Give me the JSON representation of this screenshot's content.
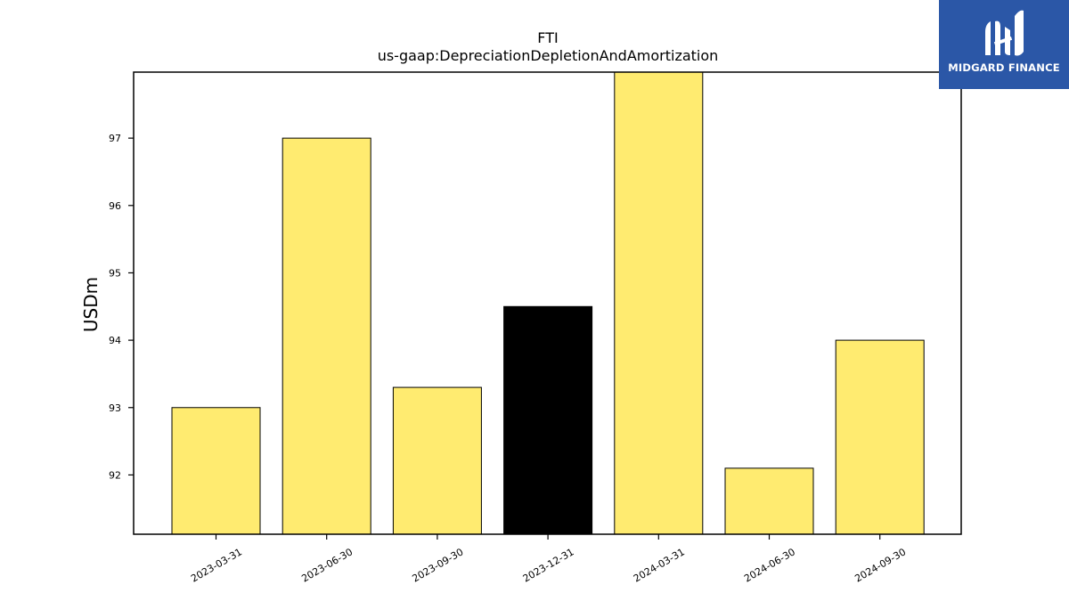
{
  "chart_data": {
    "type": "bar",
    "title": "FTI",
    "subtitle": "us-gaap:DepreciationDepletionAndAmortization",
    "xlabel": "",
    "ylabel": "USDm",
    "categories": [
      "2023-03-31",
      "2023-06-30",
      "2023-09-30",
      "2023-12-31",
      "2024-03-31",
      "2024-06-30",
      "2024-09-30"
    ],
    "values": [
      93.0,
      97.0,
      93.3,
      94.5,
      98.0,
      92.1,
      94.0
    ],
    "highlight_index": 3,
    "ylim": [
      91.12,
      97.98
    ],
    "yticks": [
      92,
      93,
      94,
      95,
      96,
      97
    ],
    "colors": {
      "bar": "#ffeb70",
      "highlight": "#000000",
      "edge": "#000000"
    },
    "grid": false,
    "legend": "none"
  },
  "logo": {
    "text": "MIDGARD FINANCE",
    "icon": "midgard-logo-icon",
    "color": "#2b57a7"
  }
}
